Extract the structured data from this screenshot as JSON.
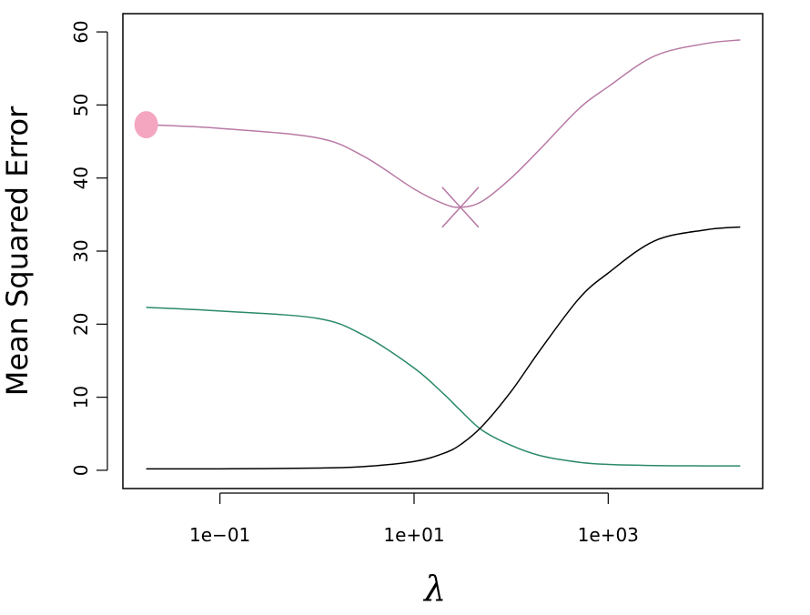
{
  "chart_data": {
    "type": "line",
    "x_label": "λ",
    "y_label": "Mean Squared Error",
    "log_x": true,
    "xlim": [
      0.01,
      39000
    ],
    "ylim": [
      -2.5,
      62.5
    ],
    "xticks": [
      {
        "value": 0.1,
        "label": "1e−01"
      },
      {
        "value": 10,
        "label": "1e+01"
      },
      {
        "value": 1000,
        "label": "1e+03"
      }
    ],
    "yticks": [
      0,
      10,
      20,
      30,
      40,
      50,
      60
    ],
    "x": [
      0.0174,
      0.1,
      1,
      3,
      10,
      20,
      30,
      50,
      100,
      200,
      500,
      1000,
      3000,
      10000,
      22900
    ],
    "series": [
      {
        "color": "#b87aa5",
        "values": [
          47.3,
          46.8,
          45.5,
          43,
          38.5,
          36.5,
          36,
          36.8,
          40,
          44,
          49.5,
          52.5,
          56.7,
          58.4,
          58.9
        ]
      },
      {
        "color": "#2a8a66",
        "values": [
          22.3,
          21.8,
          20.8,
          18.5,
          14,
          10.5,
          8.2,
          5.5,
          3.4,
          2,
          1.1,
          0.8,
          0.65,
          0.6,
          0.6
        ]
      },
      {
        "color": "#000000",
        "values": [
          0.2,
          0.2,
          0.3,
          0.5,
          1.2,
          2.3,
          3.5,
          6,
          10.8,
          16.5,
          23.5,
          27,
          31.4,
          32.9,
          33.3
        ]
      }
    ],
    "start_point": {
      "x": 0.0174,
      "y": 47.3,
      "color": "#f4a6c0"
    },
    "min_point": {
      "x": 30,
      "y": 36,
      "color": "#b87aa5"
    }
  }
}
